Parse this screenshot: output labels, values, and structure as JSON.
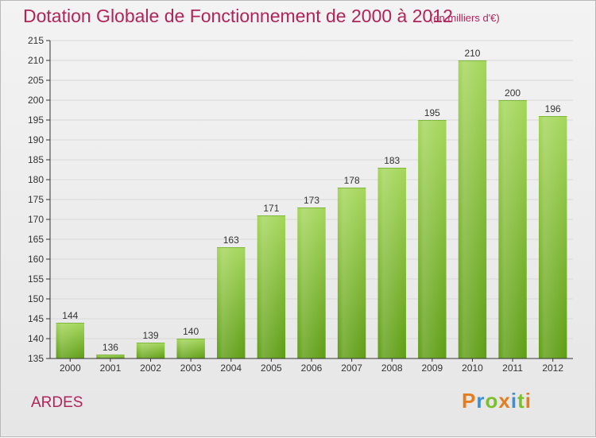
{
  "header": {
    "title": "Dotation Globale de Fonctionnement de 2000 à 2012",
    "subtitle": "(en milliers d'€)"
  },
  "footer": {
    "place": "ARDES",
    "logo_text": "Proxiti"
  },
  "colors": {
    "title": "#b0245a",
    "bar_light": "#a4d65a",
    "bar_dark": "#5e9d14",
    "axis": "#333333",
    "grid": "#d8d8d8"
  },
  "chart_data": {
    "type": "bar",
    "title": "Dotation Globale de Fonctionnement de 2000 à 2012",
    "subtitle": "(en milliers d'€)",
    "xlabel": "",
    "ylabel": "",
    "categories": [
      "2000",
      "2001",
      "2002",
      "2003",
      "2004",
      "2005",
      "2006",
      "2007",
      "2008",
      "2009",
      "2010",
      "2011",
      "2012"
    ],
    "values": [
      144,
      136,
      139,
      140,
      163,
      171,
      173,
      178,
      183,
      195,
      210,
      200,
      196
    ],
    "ylim": [
      135,
      215
    ],
    "yticks": [
      135,
      140,
      145,
      150,
      155,
      160,
      165,
      170,
      175,
      180,
      185,
      190,
      195,
      200,
      205,
      210,
      215
    ],
    "grid": true,
    "data_labels": true
  }
}
